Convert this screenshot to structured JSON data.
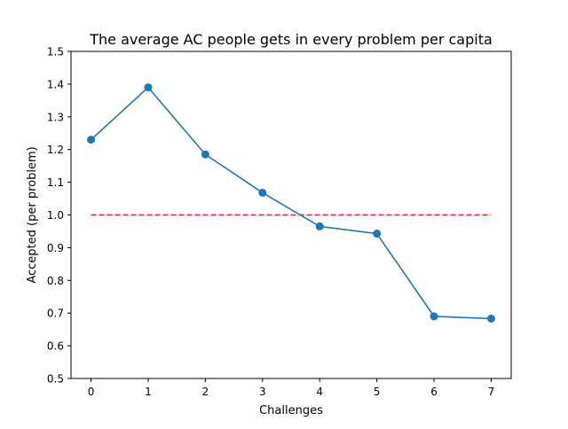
{
  "chart_data": {
    "type": "line",
    "title": "The average AC people gets in every problem per capita",
    "xlabel": "Challenges",
    "ylabel": "Accepted (per problem)",
    "x": [
      0,
      1,
      2,
      3,
      4,
      5,
      6,
      7
    ],
    "xticks": [
      "0",
      "1",
      "2",
      "3",
      "4",
      "5",
      "6",
      "7"
    ],
    "yticks": [
      "0.5",
      "0.6",
      "0.7",
      "0.8",
      "0.9",
      "1.0",
      "1.1",
      "1.2",
      "1.3",
      "1.4",
      "1.5"
    ],
    "xlim": [
      -0.35,
      7.35
    ],
    "ylim": [
      0.5,
      1.5
    ],
    "series": [
      {
        "values": [
          1.23,
          1.39,
          1.185,
          1.068,
          0.965,
          0.943,
          0.69,
          0.683
        ],
        "color": "#1f77b4",
        "style": "solid",
        "marker": "circle"
      }
    ],
    "reference_line": {
      "y": 1.0,
      "x_range": [
        0,
        7
      ],
      "color": "#d62728",
      "style": "dashed"
    },
    "grid": false,
    "legend": "none"
  }
}
